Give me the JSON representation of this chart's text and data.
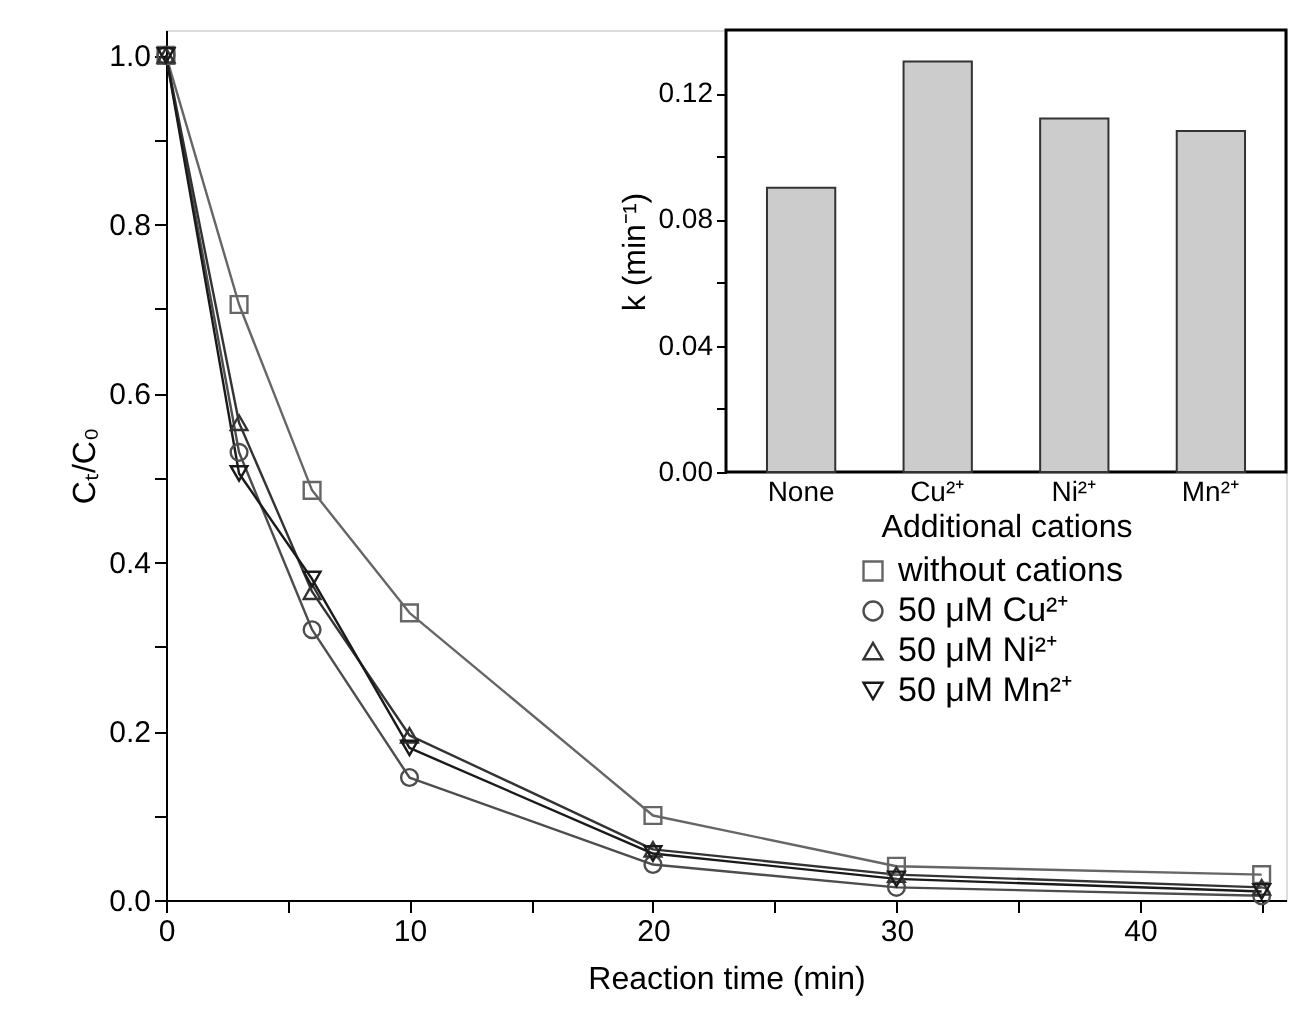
{
  "chart_data": [
    {
      "type": "line",
      "xlabel": "Reaction time (min)",
      "ylabel": "Cₜ/C₀",
      "x": [
        0,
        3,
        6,
        10,
        20,
        30,
        45
      ],
      "series": [
        {
          "name": "without cations",
          "color": "#666666",
          "marker": "square",
          "values": [
            1.0,
            0.705,
            0.485,
            0.34,
            0.1,
            0.04,
            0.03
          ]
        },
        {
          "name": "50 μM Cu²⁺",
          "color": "#4d4d4d",
          "marker": "circle",
          "values": [
            1.0,
            0.53,
            0.32,
            0.145,
            0.042,
            0.015,
            0.005
          ]
        },
        {
          "name": "50 μM Ni²⁺",
          "color": "#333333",
          "marker": "triangle",
          "values": [
            1.0,
            0.565,
            0.365,
            0.195,
            0.06,
            0.03,
            0.015
          ]
        },
        {
          "name": "50 μM Mn²⁺",
          "color": "#1a1a1a",
          "marker": "triangle-down",
          "values": [
            1.0,
            0.505,
            0.38,
            0.18,
            0.055,
            0.025,
            0.01
          ]
        }
      ],
      "xlim": [
        0,
        46
      ],
      "ylim": [
        0,
        1.03
      ],
      "xticks": [
        0,
        {
          "value": 5,
          "label": null
        },
        10,
        {
          "value": 15,
          "label": null
        },
        20,
        {
          "value": 25,
          "label": null
        },
        30,
        {
          "value": 35,
          "label": null
        },
        40,
        {
          "value": 45,
          "label": null
        }
      ],
      "yticks": [
        {
          "value": 0,
          "label": "0.0"
        },
        {
          "value": 0.1,
          "label": null
        },
        {
          "value": 0.2,
          "label": "0.2"
        },
        {
          "value": 0.3,
          "label": null
        },
        {
          "value": 0.4,
          "label": "0.4"
        },
        {
          "value": 0.5,
          "label": null
        },
        {
          "value": 0.6,
          "label": "0.6"
        },
        {
          "value": 0.7,
          "label": null
        },
        {
          "value": 0.8,
          "label": "0.8"
        },
        {
          "value": 0.9,
          "label": null
        },
        {
          "value": 1.0,
          "label": "1.0"
        }
      ],
      "grid": false,
      "legend": "right"
    },
    {
      "type": "bar",
      "xlabel": "Additional cations",
      "ylabel": "k (min⁻¹)",
      "categories": [
        "None",
        "Cu²⁺",
        "Ni²⁺",
        "Mn²⁺"
      ],
      "values": [
        0.09,
        0.13,
        0.112,
        0.108
      ],
      "colors": [
        "#cccccc",
        "#cccccc",
        "#cccccc",
        "#cccccc"
      ],
      "ylim": [
        0,
        0.14
      ],
      "yticks": [
        {
          "value": 0,
          "label": "0.00"
        },
        {
          "value": 0.02,
          "label": null
        },
        {
          "value": 0.04,
          "label": "0.04"
        },
        {
          "value": 0.06,
          "label": null
        },
        {
          "value": 0.08,
          "label": "0.08"
        },
        {
          "value": 0.1,
          "label": null
        },
        {
          "value": 0.12,
          "label": "0.12"
        }
      ],
      "grid": false
    }
  ]
}
